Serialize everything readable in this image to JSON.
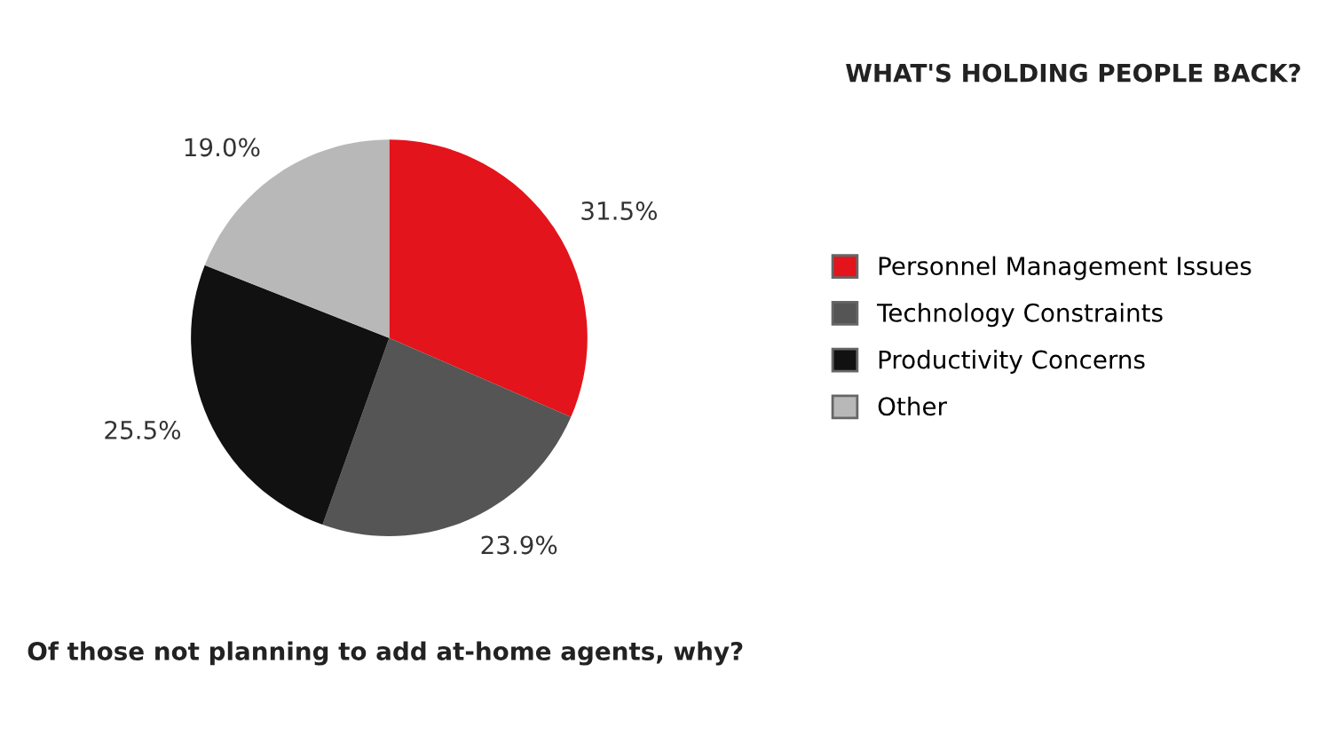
{
  "chart_data": {
    "type": "pie",
    "title": "WHAT'S HOLDING PEOPLE BACK?",
    "categories": [
      "Personnel Management Issues",
      "Technology Constraints",
      "Productivity Concerns",
      "Other"
    ],
    "values": [
      31.5,
      23.9,
      25.5,
      19.0
    ],
    "colors": [
      "#e3141b",
      "#555555",
      "#111111",
      "#b8b8b8"
    ],
    "value_labels": [
      "31.5%",
      "23.9%",
      "25.5%",
      "19.0%"
    ],
    "legend": "right",
    "annotations": [
      "Of those not planning to add at-home agents, why?"
    ]
  }
}
